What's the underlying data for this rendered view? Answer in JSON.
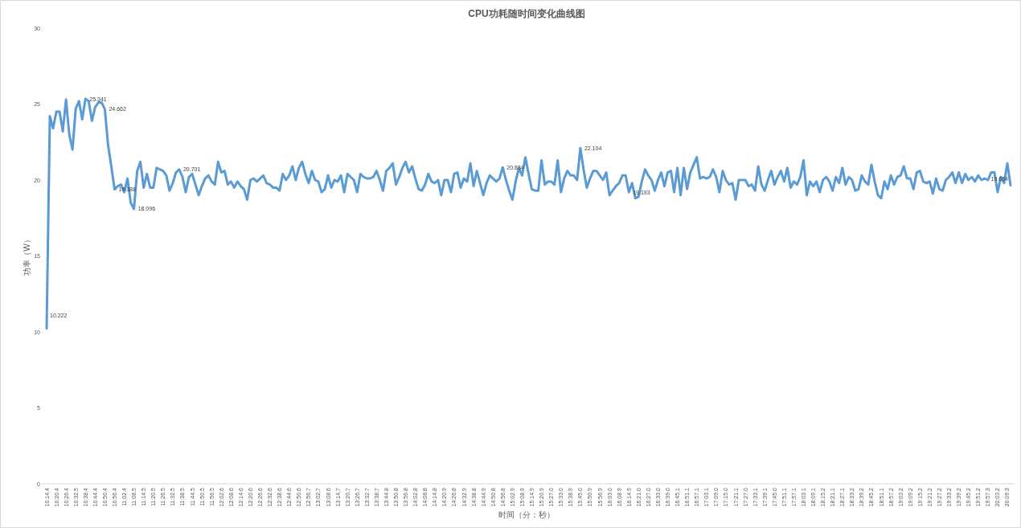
{
  "chart_data": {
    "type": "line",
    "title": "CPU功耗随时间变化曲线图",
    "xlabel": "时间（分：秒）",
    "ylabel": "功率（W）",
    "categories": [
      "10:14.4",
      null,
      null,
      "10:20.4",
      null,
      null,
      "10:26.4",
      null,
      null,
      "10:32.5",
      null,
      null,
      "10:38.4",
      null,
      null,
      "10:44.4",
      null,
      null,
      "10:50.4",
      null,
      null,
      "10:56.4",
      null,
      null,
      "11:02.4",
      null,
      null,
      "11:08.5",
      null,
      null,
      "11:14.5",
      null,
      null,
      "11:20.5",
      null,
      null,
      "11:26.5",
      null,
      null,
      "11:32.5",
      null,
      null,
      "11:38.5",
      null,
      null,
      "11:44.5",
      null,
      null,
      "11:50.5",
      null,
      null,
      "11:56.5",
      null,
      null,
      "12:02.6",
      null,
      null,
      "12:08.6",
      null,
      null,
      "12:14.6",
      null,
      null,
      "12:20.6",
      null,
      null,
      "12:26.6",
      null,
      null,
      "12:32.6",
      null,
      null,
      "12:38.6",
      null,
      null,
      "12:44.6",
      null,
      null,
      "12:50.6",
      null,
      null,
      "12:56.7",
      null,
      null,
      "13:02.7",
      null,
      null,
      "13:08.6",
      null,
      null,
      "13:14.7",
      null,
      null,
      "13:20.7",
      null,
      null,
      "13:26.7",
      null,
      null,
      "13:32.7",
      null,
      null,
      "13:38.7",
      null,
      null,
      "13:44.8",
      null,
      null,
      "13:50.8",
      null,
      null,
      "13:56.8",
      null,
      null,
      "14:02.8",
      null,
      null,
      "14:08.8",
      null,
      null,
      "14:14.8",
      null,
      null,
      "14:20.9",
      null,
      null,
      "14:26.8",
      null,
      null,
      "14:32.9",
      null,
      null,
      "14:38.8",
      null,
      null,
      "14:44.9",
      null,
      null,
      "14:50.8",
      null,
      null,
      "14:56.8",
      null,
      null,
      "15:02.9",
      null,
      null,
      "15:08.9",
      null,
      null,
      "15:14.9",
      null,
      null,
      "15:20.9",
      null,
      null,
      "15:27.0",
      null,
      null,
      "15:33.0",
      null,
      null,
      "15:38.9",
      null,
      null,
      "15:45.0",
      null,
      null,
      "15:50.9",
      null,
      null,
      "15:56.9",
      null,
      null,
      "16:03.0",
      null,
      null,
      "16:08.9",
      null,
      null,
      "16:14.9",
      null,
      null,
      "16:21.0",
      null,
      null,
      "16:27.0",
      null,
      null,
      "16:33.0",
      null,
      null,
      "16:39.0",
      null,
      null,
      "16:45.1",
      null,
      null,
      "16:51.1",
      null,
      null,
      "16:57.1",
      null,
      null,
      "17:03.1",
      null,
      null,
      "17:09.0",
      null,
      null,
      "17:15.0",
      null,
      null,
      "17:21.1",
      null,
      null,
      "17:27.0",
      null,
      null,
      "17:33.1",
      null,
      null,
      "17:39.1",
      null,
      null,
      "17:45.0",
      null,
      null,
      "17:51.1",
      null,
      null,
      "17:57.1",
      null,
      null,
      "18:03.1",
      null,
      null,
      "18:09.1",
      null,
      null,
      "18:15.2",
      null,
      null,
      "18:21.1",
      null,
      null,
      "18:27.1",
      null,
      null,
      "18:33.2",
      null,
      null,
      "18:39.2",
      null,
      null,
      "18:45.2",
      null,
      null,
      "18:51.1",
      null,
      null,
      "18:57.2",
      null,
      null,
      "19:03.2",
      null,
      null,
      "19:09.2",
      null,
      null,
      "19:15.2",
      null,
      null,
      "19:21.2",
      null,
      null,
      "19:27.2",
      null,
      null,
      "19:33.2",
      null,
      null,
      "19:39.2",
      null,
      null,
      "19:45.2",
      null,
      null,
      "19:51.2",
      null,
      null,
      "19:57.3",
      null,
      null,
      "20:03.2",
      null,
      null,
      "20:09.3",
      null
    ],
    "series": [
      {
        "color": "#5b9bd5",
        "values": [
          10.222,
          24.2,
          23.4,
          24.5,
          24.5,
          23.2,
          25.3,
          23.0,
          22.0,
          24.7,
          25.2,
          24.0,
          25.341,
          25.2,
          23.9,
          24.8,
          25.1,
          25.1,
          24.662,
          22.3,
          20.9,
          19.388,
          19.6,
          19.7,
          19.2,
          20.1,
          18.5,
          18.096,
          20.6,
          21.2,
          19.5,
          20.4,
          19.5,
          19.5,
          20.8,
          20.7,
          20.6,
          20.3,
          19.3,
          19.8,
          20.5,
          20.701,
          20.2,
          19.2,
          20.2,
          20.4,
          19.7,
          19.0,
          19.6,
          20.1,
          20.3,
          19.9,
          19.7,
          21.2,
          20.5,
          20.6,
          19.7,
          19.9,
          19.5,
          19.9,
          19.6,
          19.4,
          18.7,
          20.0,
          20.1,
          19.9,
          20.1,
          20.3,
          19.8,
          19.7,
          19.5,
          19.5,
          19.3,
          20.4,
          20.0,
          20.3,
          20.9,
          20.0,
          20.8,
          21.2,
          20.4,
          19.8,
          20.6,
          20.0,
          19.9,
          19.2,
          19.4,
          20.3,
          19.5,
          20.0,
          19.9,
          20.3,
          19.2,
          20.4,
          20.2,
          20.0,
          19.2,
          20.4,
          20.2,
          20.1,
          20.1,
          20.2,
          20.6,
          20.0,
          19.3,
          20.6,
          20.8,
          21.1,
          19.7,
          20.2,
          20.8,
          21.2,
          20.5,
          20.9,
          20.1,
          19.4,
          19.3,
          19.7,
          20.4,
          19.9,
          19.8,
          20.0,
          19.0,
          20.0,
          20.0,
          19.2,
          20.4,
          20.5,
          19.5,
          20.1,
          19.9,
          21.1,
          19.6,
          20.6,
          19.8,
          19.0,
          19.8,
          20.3,
          20.1,
          19.9,
          20.1,
          20.834,
          20.0,
          19.3,
          18.7,
          19.9,
          20.8,
          20.3,
          21.5,
          20.4,
          19.4,
          19.3,
          19.3,
          21.3,
          19.7,
          19.9,
          19.9,
          19.7,
          21.3,
          19.2,
          20.1,
          20.6,
          20.3,
          20.3,
          20.0,
          22.104,
          20.7,
          19.5,
          20.1,
          20.6,
          20.6,
          20.3,
          20.0,
          20.5,
          19.0,
          19.3,
          19.6,
          19.8,
          20.3,
          20.3,
          19.193,
          19.8,
          18.8,
          18.9,
          19.9,
          20.7,
          20.3,
          20.0,
          19.3,
          20.0,
          20.5,
          19.6,
          20.5,
          20.6,
          19.2,
          20.8,
          19.0,
          20.8,
          19.4,
          20.5,
          21.0,
          21.5,
          20.1,
          20.2,
          20.1,
          20.2,
          20.7,
          20.2,
          19.2,
          20.6,
          20.0,
          19.7,
          19.8,
          18.7,
          20.0,
          20.0,
          20.0,
          19.6,
          19.7,
          19.3,
          20.9,
          19.7,
          19.3,
          20.0,
          20.6,
          19.7,
          20.2,
          20.6,
          19.9,
          20.8,
          19.5,
          19.9,
          19.7,
          20.2,
          21.3,
          19.0,
          19.9,
          19.6,
          19.9,
          19.2,
          20.0,
          20.2,
          19.9,
          19.3,
          20.2,
          19.8,
          20.8,
          19.7,
          20.2,
          20.0,
          19.3,
          19.4,
          20.3,
          19.9,
          19.7,
          21.0,
          19.9,
          19.0,
          18.8,
          19.9,
          19.4,
          20.3,
          19.7,
          20.2,
          20.3,
          20.9,
          20.1,
          20.1,
          19.4,
          20.5,
          20.6,
          19.9,
          19.8,
          19.9,
          19.1,
          20.1,
          19.4,
          19.3,
          20.0,
          20.2,
          20.5,
          19.8,
          20.5,
          19.8,
          20.4,
          20.0,
          20.2,
          19.9,
          20.3,
          20.0,
          20.1,
          20.0,
          20.5,
          20.5,
          19.2,
          20.2,
          19.8,
          21.1,
          19.654
        ],
        "value_labels": [
          "10.222",
          null,
          null,
          null,
          null,
          null,
          null,
          null,
          null,
          null,
          null,
          null,
          "25.341",
          null,
          null,
          null,
          null,
          null,
          "24.662",
          null,
          null,
          "19.388",
          null,
          null,
          null,
          null,
          null,
          "18.096",
          null,
          null,
          null,
          null,
          null,
          null,
          null,
          null,
          null,
          null,
          null,
          null,
          null,
          "20.701",
          null,
          null,
          null,
          null,
          null,
          null,
          null,
          null,
          null,
          null,
          null,
          null,
          null,
          null,
          null,
          null,
          null,
          null,
          null,
          null,
          null,
          null,
          null,
          null,
          null,
          null,
          null,
          null,
          null,
          null,
          null,
          null,
          null,
          null,
          null,
          null,
          null,
          null,
          null,
          null,
          null,
          null,
          null,
          null,
          null,
          null,
          null,
          null,
          null,
          null,
          null,
          null,
          null,
          null,
          null,
          null,
          null,
          null,
          null,
          null,
          null,
          null,
          null,
          null,
          null,
          null,
          null,
          null,
          null,
          null,
          null,
          null,
          null,
          null,
          null,
          null,
          null,
          null,
          null,
          null,
          null,
          null,
          null,
          null,
          null,
          null,
          null,
          null,
          null,
          null,
          null,
          null,
          null,
          null,
          null,
          null,
          null,
          null,
          null,
          "20.834",
          null,
          null,
          null,
          null,
          null,
          null,
          null,
          null,
          null,
          null,
          null,
          null,
          null,
          null,
          null,
          null,
          null,
          null,
          null,
          null,
          null,
          null,
          null,
          "22.104",
          null,
          null,
          null,
          null,
          null,
          null,
          null,
          null,
          null,
          null,
          null,
          null,
          null,
          null,
          "19.193",
          null,
          null,
          null,
          null,
          null,
          null,
          null,
          null,
          null,
          null,
          null,
          null,
          null,
          null,
          null,
          null,
          null,
          null,
          null,
          null,
          null,
          null,
          null,
          null,
          null,
          null,
          null,
          null,
          null,
          null,
          null,
          null,
          null,
          null,
          null,
          null,
          null,
          null,
          null,
          null,
          null,
          null,
          null,
          null,
          null,
          null,
          null,
          null,
          null,
          null,
          null,
          null,
          null,
          null,
          null,
          null,
          null,
          null,
          null,
          null,
          null,
          null,
          null,
          null,
          null,
          null,
          null,
          null,
          null,
          null,
          null,
          null,
          null,
          null,
          null,
          null,
          null,
          null,
          null,
          null,
          null,
          null,
          null,
          null,
          null,
          null,
          null,
          null,
          null,
          null,
          null,
          null,
          null,
          null,
          null,
          null,
          null,
          null,
          null,
          null,
          null,
          null,
          null,
          null,
          null,
          null,
          null,
          null,
          null,
          null,
          null,
          null,
          null,
          null,
          null,
          null,
          null,
          "19.654"
        ]
      }
    ],
    "ylim": [
      0,
      30
    ],
    "yticks": [
      0,
      5,
      10,
      15,
      20,
      25,
      30
    ],
    "line_style": "solid"
  }
}
